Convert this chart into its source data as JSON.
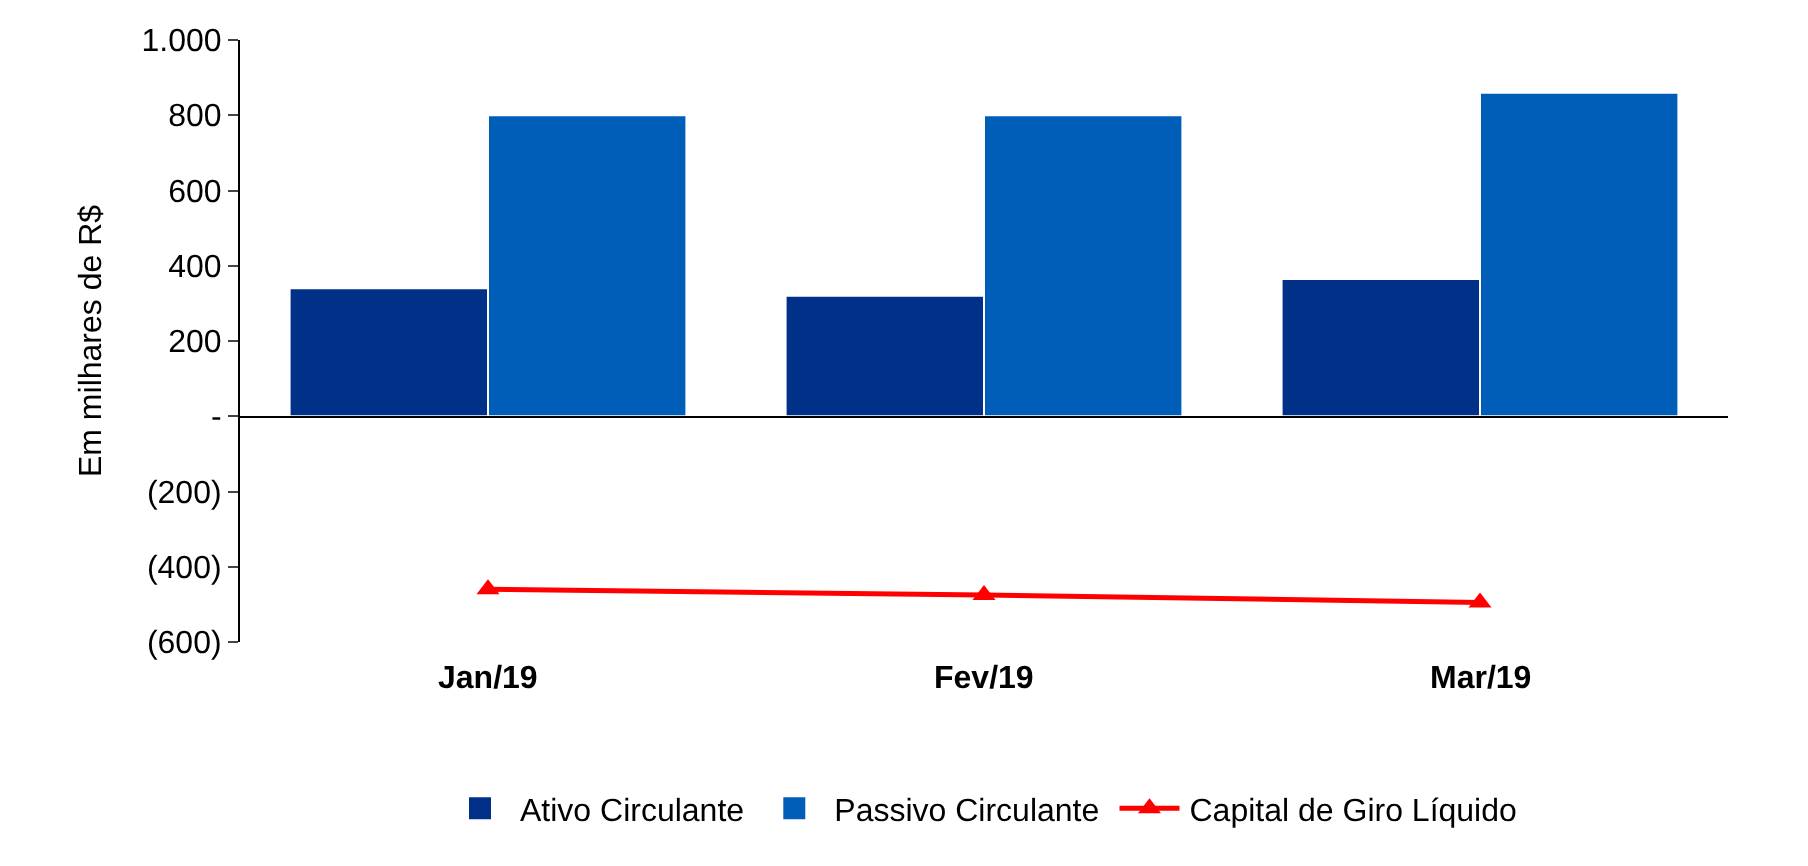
{
  "chart_data": {
    "type": "bar",
    "ylabel": "Em milhares de R$",
    "categories": [
      "Jan/19",
      "Fev/19",
      "Mar/19"
    ],
    "series": [
      {
        "name": "Ativo Circulante",
        "color": "#003087",
        "values": [
          340,
          320,
          365
        ]
      },
      {
        "name": "Passivo Circulante",
        "color": "#005eb8",
        "values": [
          800,
          800,
          860
        ]
      },
      {
        "name": "Capital de Giro Líquido",
        "type": "line",
        "color": "#ff0000",
        "marker": "triangle",
        "values": [
          -460,
          -475,
          -495
        ]
      }
    ],
    "ylim": [
      -600,
      1000
    ],
    "yticks": [
      {
        "value": -600,
        "label": "(600)"
      },
      {
        "value": -400,
        "label": "(400)"
      },
      {
        "value": -200,
        "label": "(200)"
      },
      {
        "value": 0,
        "label": "-"
      },
      200,
      400,
      600,
      800,
      {
        "value": 1000,
        "label": "1.000"
      }
    ],
    "legend": "bottom"
  }
}
